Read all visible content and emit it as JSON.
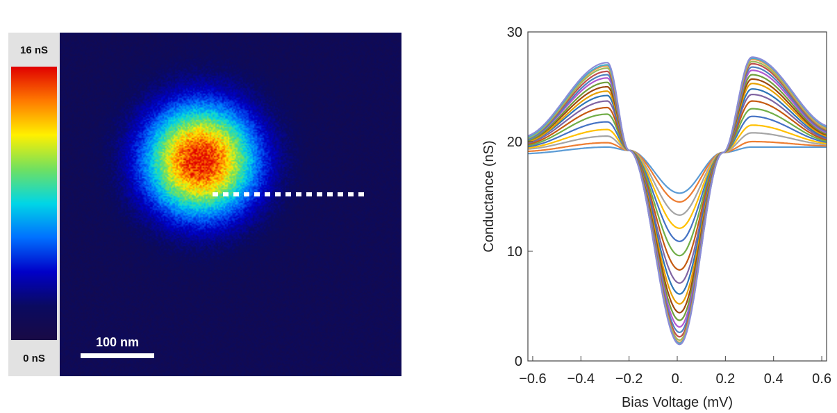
{
  "map": {
    "colorbar_max_label": "16 nS",
    "colorbar_min_label": "0 nS",
    "colorbar_stops": [
      "#e00000",
      "#ff7a00",
      "#fff000",
      "#70e060",
      "#00d6e6",
      "#0070ff",
      "#0000c8",
      "#0a0a60",
      "#190a45"
    ],
    "scale_bar_label": "100 nm",
    "background_color": "#180a4a"
  },
  "chart_data": {
    "type": "line",
    "xlabel": "Bias Voltage (mV)",
    "ylabel": "Conductance (nS)",
    "xlim": [
      -0.62,
      0.62
    ],
    "ylim": [
      0,
      30
    ],
    "xticks": [
      -0.6,
      -0.4,
      -0.2,
      0.0,
      0.2,
      0.4,
      0.6
    ],
    "xtick_labels": [
      "−0.6",
      "−0.4",
      "−0.2",
      "0.",
      "0.2",
      "0.4",
      "0.6"
    ],
    "yticks": [
      0,
      10,
      20,
      30
    ],
    "ytick_labels": [
      "0",
      "10",
      "20",
      "30"
    ],
    "series_count": 19,
    "series_colors": [
      "#5b9bd5",
      "#ed7d31",
      "#a5a5a5",
      "#ffc000",
      "#4472c4",
      "#70ad47",
      "#c55a11",
      "#8064a2",
      "#2e75b6",
      "#e6a000",
      "#9e480e",
      "#6f9e3c",
      "#b05ad0",
      "#4f81bd",
      "#c0504d",
      "#9bbb59",
      "#f79646",
      "#4bacc6",
      "#8c8cd8"
    ],
    "center_conductance": [
      15.3,
      14.5,
      13.3,
      12.1,
      10.9,
      9.6,
      8.3,
      7.1,
      6.1,
      5.2,
      4.4,
      3.7,
      3.1,
      2.6,
      2.2,
      1.9,
      1.7,
      1.6,
      1.5
    ],
    "left_peak": [
      19.5,
      19.9,
      20.5,
      21.1,
      21.8,
      22.5,
      23.1,
      23.7,
      24.2,
      24.6,
      25.0,
      25.4,
      25.8,
      26.1,
      26.4,
      26.7,
      26.9,
      27.0,
      27.2
    ],
    "right_peak": [
      19.5,
      20.0,
      20.8,
      21.5,
      22.3,
      23.0,
      23.7,
      24.3,
      24.8,
      25.3,
      25.7,
      26.1,
      26.5,
      26.8,
      27.1,
      27.3,
      27.5,
      27.6,
      27.7
    ],
    "edge_left": [
      18.9,
      19.1,
      19.3,
      19.4,
      19.5,
      19.6,
      19.7,
      19.8,
      19.9,
      19.9,
      20.0,
      20.0,
      20.1,
      20.1,
      20.2,
      20.2,
      20.3,
      20.3,
      20.4
    ],
    "edge_right": [
      19.5,
      19.6,
      19.7,
      19.8,
      19.9,
      20.0,
      20.1,
      20.2,
      20.3,
      20.4,
      20.5,
      20.6,
      20.7,
      20.8,
      20.9,
      21.0,
      21.1,
      21.2,
      21.3
    ],
    "crossing_points": [
      [
        -0.2,
        19.2
      ],
      [
        0.19,
        19.0
      ]
    ],
    "peak_positions_mV": [
      -0.29,
      0.31
    ]
  }
}
